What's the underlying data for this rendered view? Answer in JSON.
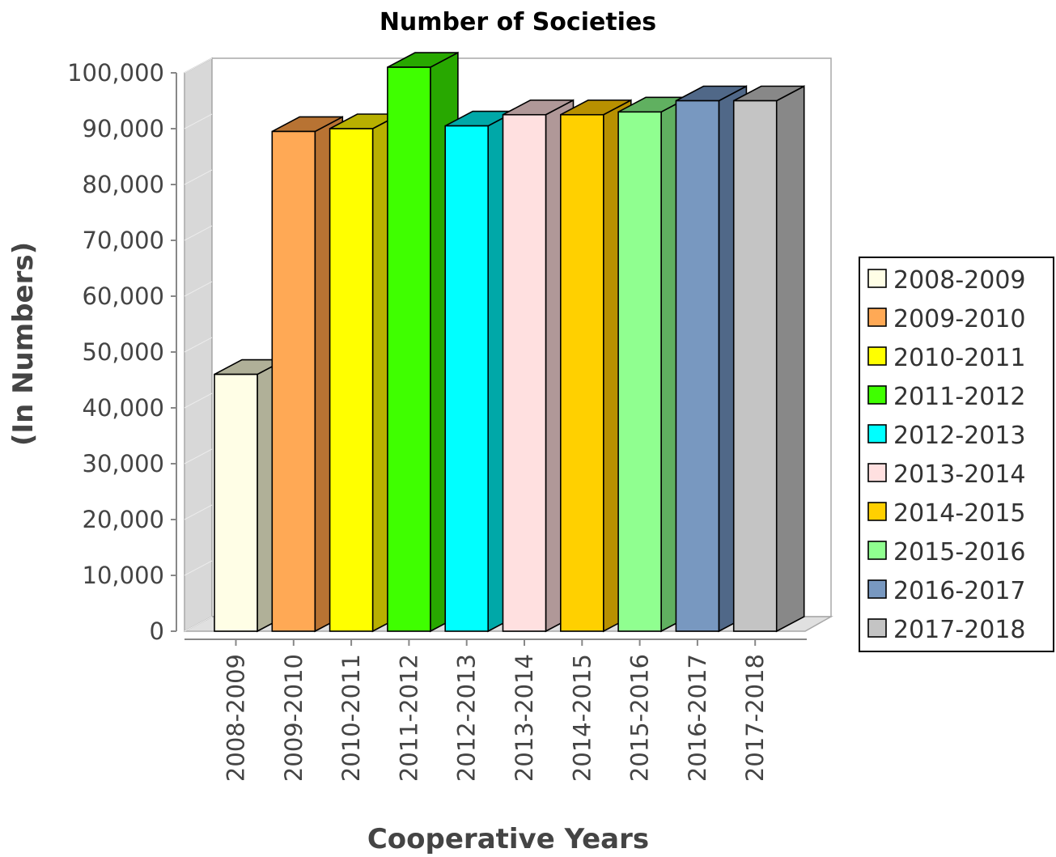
{
  "chart_data": {
    "type": "bar",
    "title": "Number of Societies",
    "xlabel": "Cooperative Years",
    "ylabel": "(In Numbers)",
    "ylim": [
      0,
      100000
    ],
    "yticks": [
      "0",
      "10,000",
      "20,000",
      "30,000",
      "40,000",
      "50,000",
      "60,000",
      "70,000",
      "80,000",
      "90,000",
      "100,000"
    ],
    "categories": [
      "2008-2009",
      "2009-2010",
      "2010-2011",
      "2011-2012",
      "2012-2013",
      "2013-2014",
      "2014-2015",
      "2015-2016",
      "2016-2017",
      "2017-2018"
    ],
    "values": [
      46000,
      89500,
      90000,
      101000,
      90500,
      92500,
      92500,
      93000,
      95000,
      95000
    ],
    "colors": [
      "#FFFEE6",
      "#FFA955",
      "#FFFF00",
      "#3FFF00",
      "#00FFFF",
      "#FFE0E0",
      "#FFD000",
      "#90FF90",
      "#7898C0",
      "#C4C4C4"
    ],
    "side_colors": [
      "#B0B098",
      "#B87333",
      "#B8B000",
      "#28A800",
      "#00A8A8",
      "#B09898",
      "#B89000",
      "#60B060",
      "#506888",
      "#888888"
    ],
    "legend": {
      "position": "right",
      "entries": [
        "2008-2009",
        "2009-2010",
        "2010-2011",
        "2011-2012",
        "2012-2013",
        "2013-2014",
        "2014-2015",
        "2015-2016",
        "2016-2017",
        "2017-2018"
      ]
    },
    "grid": true
  }
}
